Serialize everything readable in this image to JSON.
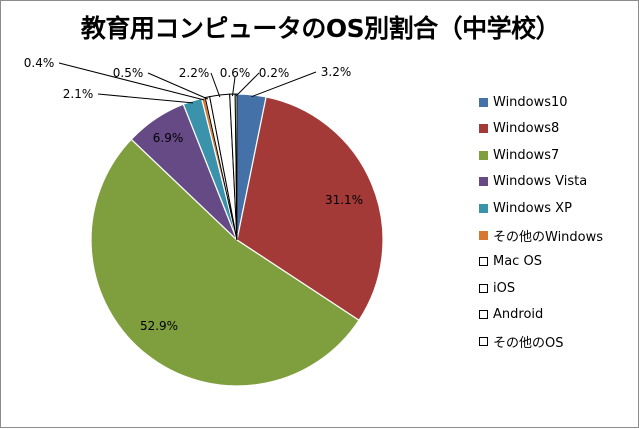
{
  "chart_data": {
    "type": "pie",
    "title": "教育用コンピュータのOS別割合（中学校）",
    "slices": [
      {
        "name": "Windows10",
        "value": 3.2,
        "label": "3.2%",
        "color": "#4472a8",
        "stroke": "#ffffff"
      },
      {
        "name": "Windows8",
        "value": 31.1,
        "label": "31.1%",
        "color": "#a33a38",
        "stroke": "#ffffff"
      },
      {
        "name": "Windows7",
        "value": 52.9,
        "label": "52.9%",
        "color": "#7f9f3e",
        "stroke": "#ffffff"
      },
      {
        "name": "Windows Vista",
        "value": 6.9,
        "label": "6.9%",
        "color": "#654a85",
        "stroke": "#ffffff"
      },
      {
        "name": "Windows XP",
        "value": 2.1,
        "label": "2.1%",
        "color": "#3a93aa",
        "stroke": "#ffffff"
      },
      {
        "name": "その他のWindows",
        "value": 0.4,
        "label": "0.4%",
        "color": "#d8772f",
        "stroke": "#ffffff"
      },
      {
        "name": "Mac OS",
        "value": 0.5,
        "label": "0.5%",
        "color": "#ffffff",
        "stroke": "#000000"
      },
      {
        "name": "iOS",
        "value": 2.2,
        "label": "2.2%",
        "color": "#ffffff",
        "stroke": "#000000"
      },
      {
        "name": "Android",
        "value": 0.6,
        "label": "0.6%",
        "color": "#ffffff",
        "stroke": "#000000"
      },
      {
        "name": "その他のOS",
        "value": 0.2,
        "label": "0.2%",
        "color": "#ffffff",
        "stroke": "#000000"
      }
    ],
    "legend_position": "right"
  }
}
